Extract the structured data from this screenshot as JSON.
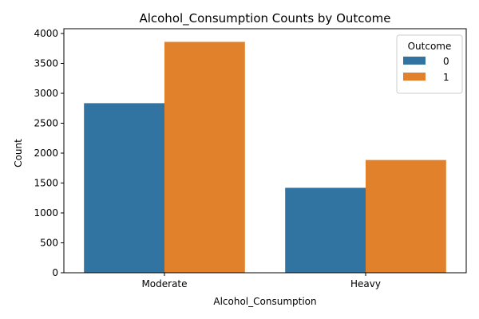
{
  "chart_data": {
    "type": "bar",
    "title": "Alcohol_Consumption Counts by Outcome",
    "xlabel": "Alcohol_Consumption",
    "ylabel": "Count",
    "categories": [
      "Moderate",
      "Heavy"
    ],
    "series": [
      {
        "name": "0",
        "color": "#3274a1",
        "values": [
          2835,
          1420
        ]
      },
      {
        "name": "1",
        "color": "#e1812c",
        "values": [
          3860,
          1885
        ]
      }
    ],
    "ylim": [
      0,
      4080
    ],
    "yticks": [
      0,
      500,
      1000,
      1500,
      2000,
      2500,
      3000,
      3500,
      4000
    ],
    "legend": {
      "title": "Outcome",
      "placement": "top-right"
    },
    "grid": false
  }
}
